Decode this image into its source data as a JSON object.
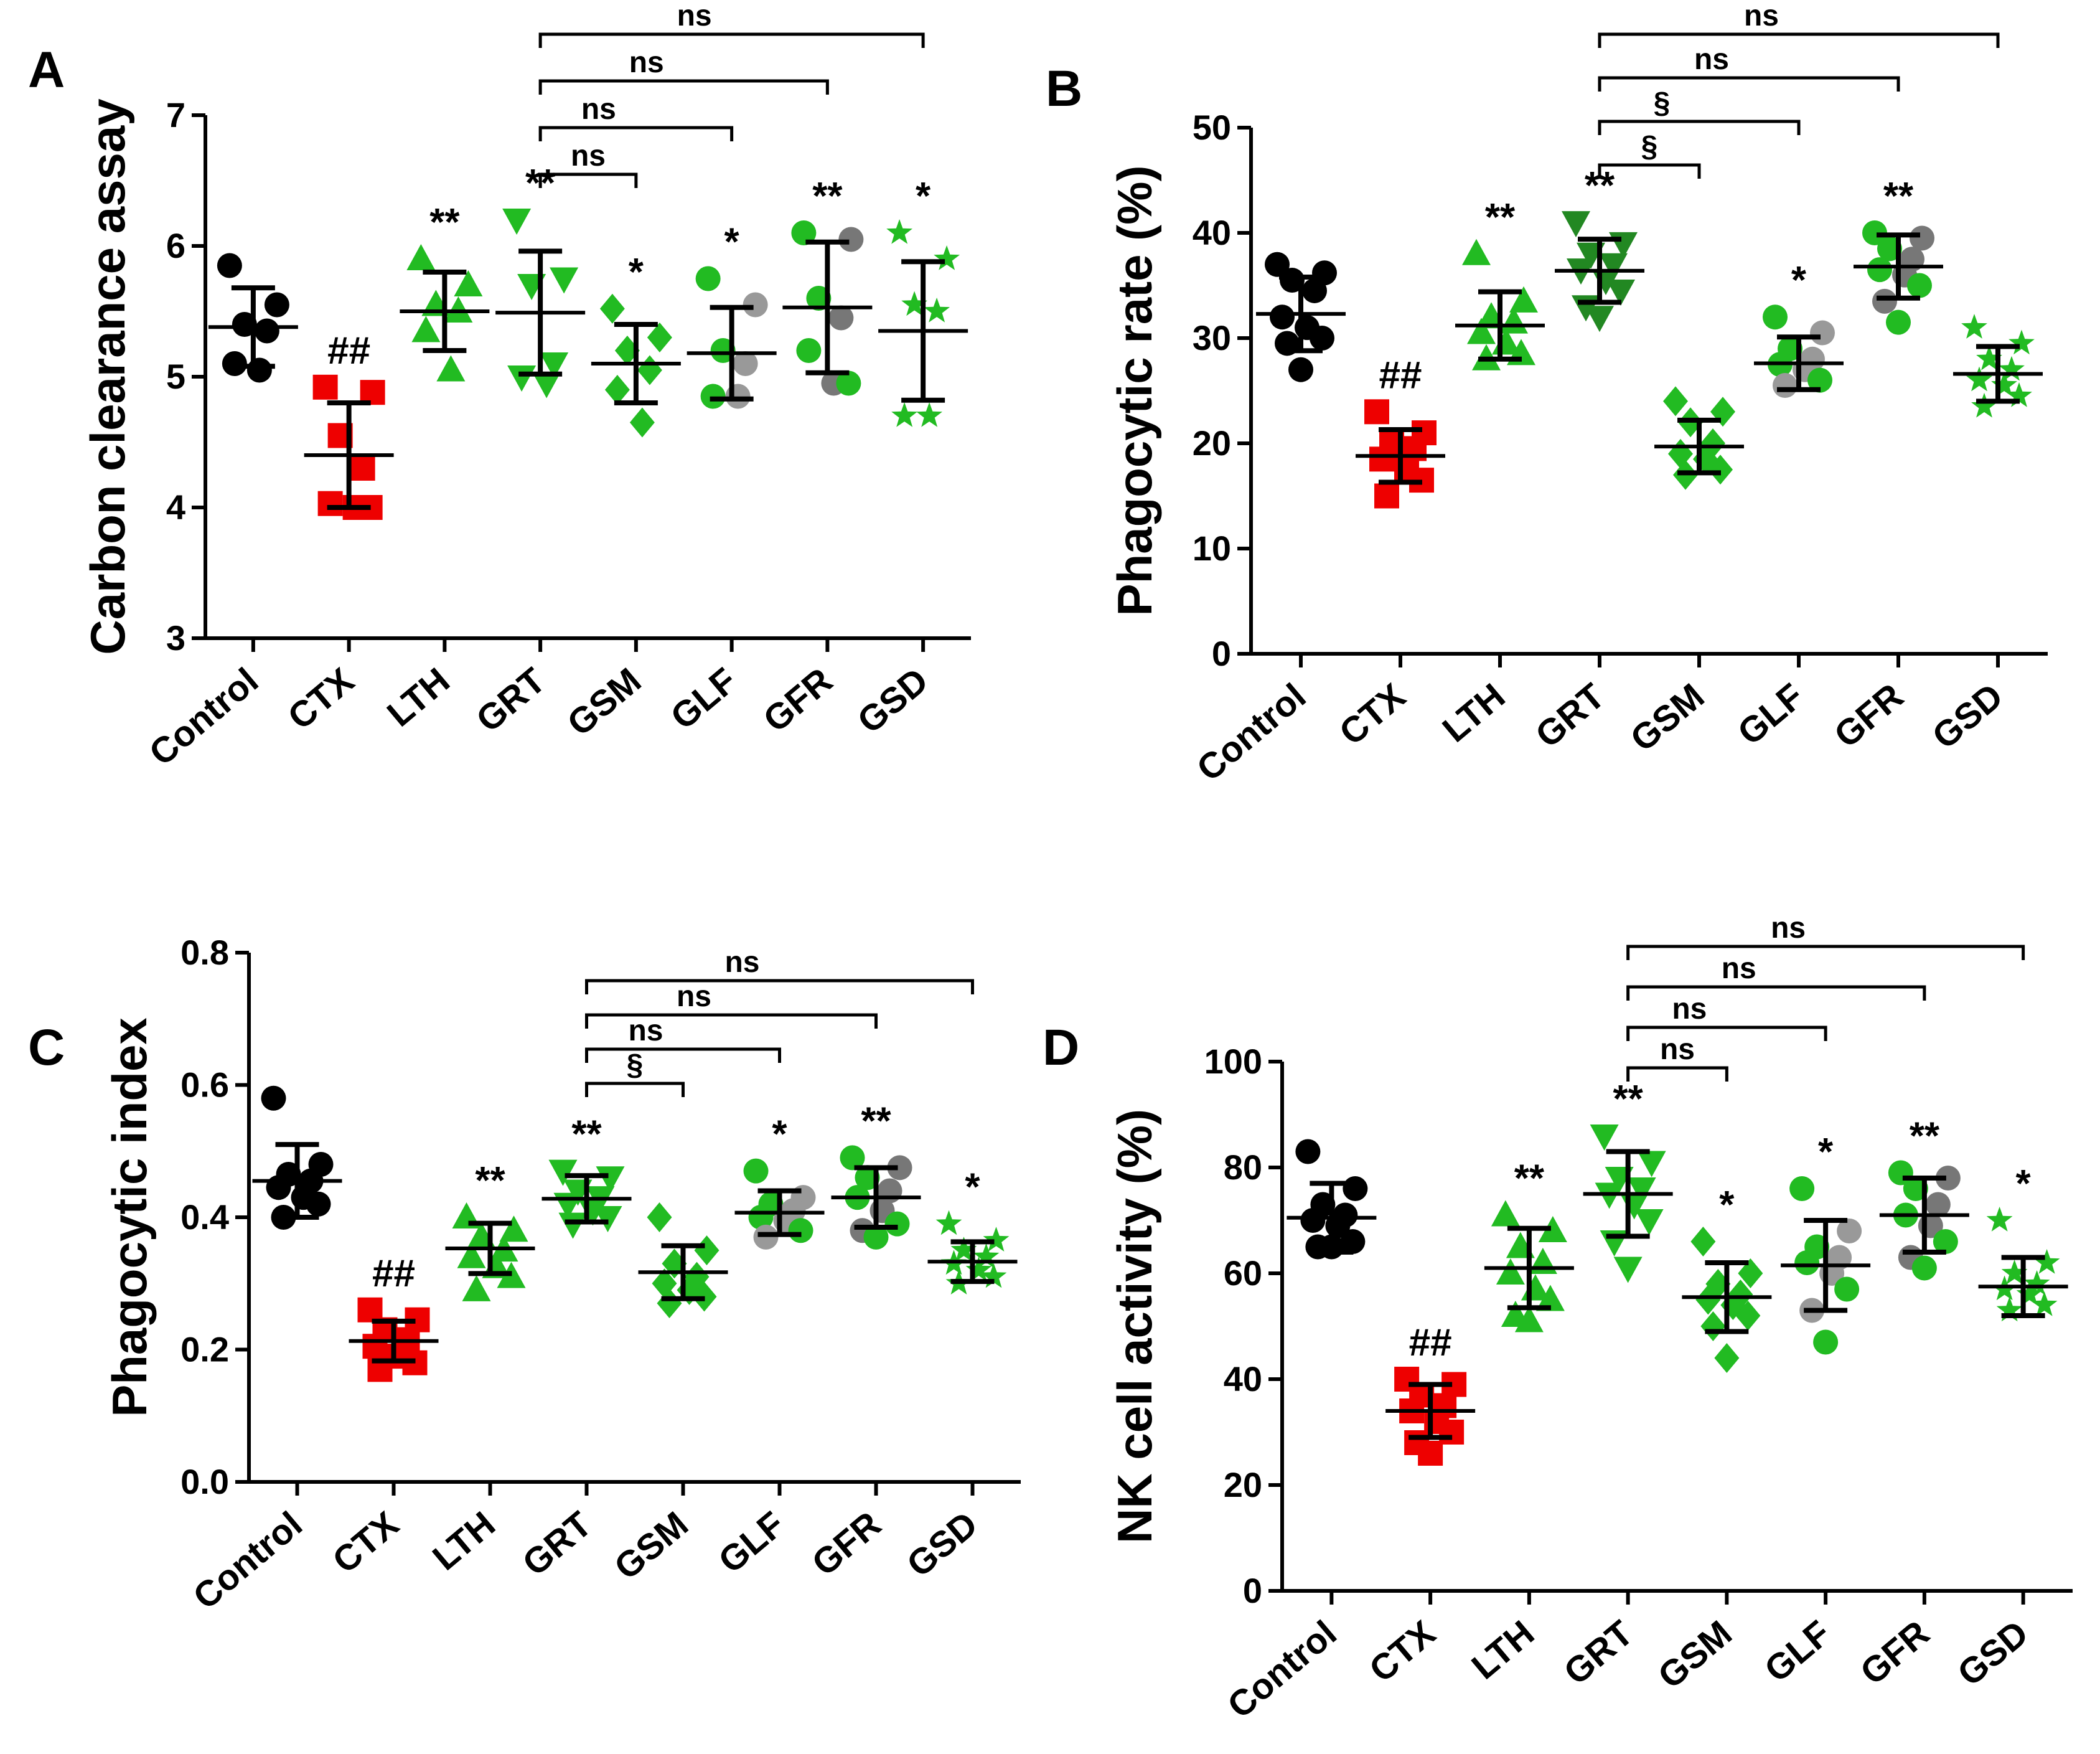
{
  "chart_data": [
    {
      "panel": "A",
      "type": "scatter",
      "ylabel": "Carbon clearance assay",
      "ylim": [
        3,
        7
      ],
      "yticks": [
        "3",
        "4",
        "5",
        "6",
        "7"
      ],
      "categories": [
        "Control",
        "CTX",
        "LTH",
        "GRT",
        "GSM",
        "GLF",
        "GFR",
        "GSD"
      ],
      "groups": [
        {
          "name": "Control",
          "mean": 5.38,
          "sd": 0.3,
          "marker": "circle",
          "colors": [
            "#000000"
          ],
          "points": [
            5.85,
            5.55,
            5.4,
            5.35,
            5.1,
            5.05
          ]
        },
        {
          "name": "CTX",
          "mean": 4.4,
          "sd": 0.4,
          "marker": "square",
          "colors": [
            "#ee0000"
          ],
          "points": [
            4.92,
            4.88,
            4.55,
            4.3,
            4.03,
            4.0,
            4.0
          ]
        },
        {
          "name": "LTH",
          "mean": 5.5,
          "sd": 0.3,
          "marker": "triangle",
          "colors": [
            "#22bb22"
          ],
          "points": [
            5.9,
            5.7,
            5.55,
            5.5,
            5.35,
            5.05
          ]
        },
        {
          "name": "GRT",
          "mean": 5.49,
          "sd": 0.47,
          "marker": "triangle-down",
          "colors": [
            "#22bb22"
          ],
          "points": [
            6.2,
            5.75,
            5.7,
            5.1,
            5.0,
            4.95
          ]
        },
        {
          "name": "GSM",
          "mean": 5.1,
          "sd": 0.3,
          "marker": "diamond",
          "colors": [
            "#22bb22"
          ],
          "points": [
            5.52,
            5.3,
            5.2,
            5.05,
            4.9,
            4.65
          ]
        },
        {
          "name": "GLF",
          "mean": 5.18,
          "sd": 0.35,
          "marker": "circle",
          "colors": [
            "#22bb22",
            "#999999"
          ],
          "points": [
            5.75,
            5.55,
            5.2,
            5.1,
            4.85,
            4.85
          ]
        },
        {
          "name": "GFR",
          "mean": 5.53,
          "sd": 0.5,
          "marker": "circle",
          "colors": [
            "#22bb22",
            "#777777"
          ],
          "points": [
            6.1,
            6.05,
            5.6,
            5.45,
            5.2,
            4.95,
            4.95
          ]
        },
        {
          "name": "GSD",
          "mean": 5.35,
          "sd": 0.53,
          "marker": "star",
          "colors": [
            "#22bb22"
          ],
          "points": [
            6.1,
            5.9,
            5.55,
            5.5,
            4.7,
            4.7
          ]
        }
      ],
      "significance": [
        "",
        "##",
        "**",
        "**",
        "*",
        "*",
        "**",
        "*"
      ],
      "brackets": [
        {
          "from": "GRT",
          "to": "GSM",
          "label": "ns"
        },
        {
          "from": "GRT",
          "to": "GLF",
          "label": "ns"
        },
        {
          "from": "GRT",
          "to": "GFR",
          "label": "ns"
        },
        {
          "from": "GRT",
          "to": "GSD",
          "label": "ns"
        }
      ]
    },
    {
      "panel": "B",
      "type": "scatter",
      "ylabel": "Phagocytic rate (%)",
      "ylim": [
        0,
        50
      ],
      "yticks": [
        "0",
        "10",
        "20",
        "30",
        "40",
        "50"
      ],
      "categories": [
        "Control",
        "CTX",
        "LTH",
        "GRT",
        "GSM",
        "GLF",
        "GFR",
        "GSD"
      ],
      "groups": [
        {
          "name": "Control",
          "mean": 32.3,
          "sd": 3.5,
          "marker": "circle",
          "colors": [
            "#000000"
          ],
          "points": [
            37,
            36.2,
            35.5,
            34.5,
            32.0,
            31.0,
            30.0,
            29.5,
            27.0
          ]
        },
        {
          "name": "CTX",
          "mean": 18.8,
          "sd": 2.5,
          "marker": "square",
          "colors": [
            "#ee0000"
          ],
          "points": [
            23.0,
            21.0,
            20.0,
            19.5,
            18.5,
            17.5,
            16.5,
            15.0
          ]
        },
        {
          "name": "LTH",
          "mean": 31.2,
          "sd": 3.2,
          "marker": "triangle",
          "colors": [
            "#22bb22"
          ],
          "points": [
            38.0,
            33.5,
            32.0,
            31.5,
            30.5,
            29.5,
            28.5,
            28.0
          ]
        },
        {
          "name": "GRT",
          "mean": 36.4,
          "sd": 3.0,
          "marker": "triangle-down",
          "colors": [
            "#228822"
          ],
          "points": [
            41.0,
            39.0,
            38.0,
            37.0,
            36.5,
            35.5,
            34.5,
            33.0,
            32.0
          ]
        },
        {
          "name": "GSM",
          "mean": 19.7,
          "sd": 2.5,
          "marker": "diamond",
          "colors": [
            "#22bb22"
          ],
          "points": [
            24.0,
            23.0,
            22.0,
            20.0,
            19.0,
            18.5,
            17.5,
            17.0
          ]
        },
        {
          "name": "GLF",
          "mean": 27.6,
          "sd": 2.5,
          "marker": "circle",
          "colors": [
            "#22bb22",
            "#999999"
          ],
          "points": [
            32.0,
            30.5,
            29.0,
            28.0,
            27.5,
            27.0,
            26.0,
            25.5
          ]
        },
        {
          "name": "GFR",
          "mean": 36.8,
          "sd": 3.0,
          "marker": "circle",
          "colors": [
            "#22bb22",
            "#777777"
          ],
          "points": [
            40.0,
            39.5,
            38.5,
            37.5,
            36.5,
            36.0,
            35.0,
            33.5,
            31.5
          ]
        },
        {
          "name": "GSD",
          "mean": 26.6,
          "sd": 2.6,
          "marker": "star",
          "colors": [
            "#22bb22"
          ],
          "points": [
            31.0,
            29.5,
            28.0,
            27.0,
            26.0,
            25.5,
            24.5,
            23.5
          ]
        }
      ],
      "significance": [
        "",
        "##",
        "**",
        "**",
        "",
        "*",
        "**",
        ""
      ],
      "brackets": [
        {
          "from": "GRT",
          "to": "GSM",
          "label": "§"
        },
        {
          "from": "GRT",
          "to": "GLF",
          "label": "§"
        },
        {
          "from": "GRT",
          "to": "GFR",
          "label": "ns"
        },
        {
          "from": "GRT",
          "to": "GSD",
          "label": "ns"
        }
      ]
    },
    {
      "panel": "C",
      "type": "scatter",
      "ylabel": "Phagocytic index",
      "ylim": [
        0.0,
        0.8
      ],
      "yticks": [
        "0.0",
        "0.2",
        "0.4",
        "0.6",
        "0.8"
      ],
      "categories": [
        "Control",
        "CTX",
        "LTH",
        "GRT",
        "GSM",
        "GLF",
        "GFR",
        "GSD"
      ],
      "groups": [
        {
          "name": "Control",
          "mean": 0.455,
          "sd": 0.055,
          "marker": "circle",
          "colors": [
            "#000000"
          ],
          "points": [
            0.58,
            0.48,
            0.465,
            0.455,
            0.445,
            0.43,
            0.42,
            0.4
          ]
        },
        {
          "name": "CTX",
          "mean": 0.213,
          "sd": 0.03,
          "marker": "square",
          "colors": [
            "#ee0000"
          ],
          "points": [
            0.26,
            0.245,
            0.23,
            0.215,
            0.205,
            0.19,
            0.18,
            0.17
          ]
        },
        {
          "name": "LTH",
          "mean": 0.353,
          "sd": 0.038,
          "marker": "triangle",
          "colors": [
            "#22bb22"
          ],
          "points": [
            0.4,
            0.38,
            0.37,
            0.35,
            0.34,
            0.325,
            0.31,
            0.29
          ]
        },
        {
          "name": "GRT",
          "mean": 0.428,
          "sd": 0.035,
          "marker": "triangle-down",
          "colors": [
            "#22bb22"
          ],
          "points": [
            0.47,
            0.46,
            0.44,
            0.43,
            0.42,
            0.41,
            0.4,
            0.39
          ]
        },
        {
          "name": "GSM",
          "mean": 0.317,
          "sd": 0.04,
          "marker": "diamond",
          "colors": [
            "#22bb22"
          ],
          "points": [
            0.4,
            0.35,
            0.33,
            0.31,
            0.3,
            0.29,
            0.28,
            0.27
          ]
        },
        {
          "name": "GLF",
          "mean": 0.407,
          "sd": 0.033,
          "marker": "circle",
          "colors": [
            "#22bb22",
            "#999999"
          ],
          "points": [
            0.47,
            0.43,
            0.42,
            0.41,
            0.4,
            0.395,
            0.38,
            0.37
          ]
        },
        {
          "name": "GFR",
          "mean": 0.43,
          "sd": 0.045,
          "marker": "circle",
          "colors": [
            "#22bb22",
            "#777777"
          ],
          "points": [
            0.49,
            0.475,
            0.46,
            0.44,
            0.43,
            0.41,
            0.39,
            0.38,
            0.37
          ]
        },
        {
          "name": "GSD",
          "mean": 0.333,
          "sd": 0.03,
          "marker": "star",
          "colors": [
            "#22bb22"
          ],
          "points": [
            0.39,
            0.365,
            0.35,
            0.34,
            0.33,
            0.32,
            0.31,
            0.3
          ]
        }
      ],
      "significance": [
        "",
        "##",
        "**",
        "**",
        "",
        "*",
        "**",
        "*"
      ],
      "brackets": [
        {
          "from": "GRT",
          "to": "GSM",
          "label": "§"
        },
        {
          "from": "GRT",
          "to": "GLF",
          "label": "ns"
        },
        {
          "from": "GRT",
          "to": "GFR",
          "label": "ns"
        },
        {
          "from": "GRT",
          "to": "GSD",
          "label": "ns"
        }
      ]
    },
    {
      "panel": "D",
      "type": "scatter",
      "ylabel": "NK cell activity (%)",
      "ylim": [
        0,
        100
      ],
      "yticks": [
        "0",
        "20",
        "40",
        "60",
        "80",
        "100"
      ],
      "categories": [
        "Control",
        "CTX",
        "LTH",
        "GRT",
        "GSM",
        "GLF",
        "GFR",
        "GSD"
      ],
      "groups": [
        {
          "name": "Control",
          "mean": 70.5,
          "sd": 6.5,
          "marker": "circle",
          "colors": [
            "#000000"
          ],
          "points": [
            83,
            76,
            73,
            71,
            70,
            69,
            66,
            65,
            65
          ]
        },
        {
          "name": "CTX",
          "mean": 34,
          "sd": 5,
          "marker": "square",
          "colors": [
            "#ee0000"
          ],
          "points": [
            40,
            39,
            37,
            35,
            34,
            32,
            30,
            28,
            26
          ]
        },
        {
          "name": "LTH",
          "mean": 61,
          "sd": 7.5,
          "marker": "triangle",
          "colors": [
            "#22bb22"
          ],
          "points": [
            71,
            68,
            65,
            62,
            60,
            57,
            55,
            52,
            51
          ]
        },
        {
          "name": "GRT",
          "mean": 75,
          "sd": 8,
          "marker": "triangle-down",
          "colors": [
            "#22bb22"
          ],
          "points": [
            86,
            81,
            78,
            76,
            75,
            73,
            70,
            66,
            61
          ]
        },
        {
          "name": "GSM",
          "mean": 55.5,
          "sd": 6.5,
          "marker": "diamond",
          "colors": [
            "#22bb22"
          ],
          "points": [
            66,
            60,
            58,
            56,
            55,
            54,
            52,
            50,
            44
          ]
        },
        {
          "name": "GLF",
          "mean": 61.5,
          "sd": 8.5,
          "marker": "circle",
          "colors": [
            "#22bb22",
            "#999999"
          ],
          "points": [
            76,
            68,
            65,
            63,
            62,
            60,
            57,
            53,
            47
          ]
        },
        {
          "name": "GFR",
          "mean": 71,
          "sd": 7,
          "marker": "circle",
          "colors": [
            "#22bb22",
            "#777777"
          ],
          "points": [
            79,
            78,
            76,
            73,
            71,
            69,
            66,
            63,
            61
          ]
        },
        {
          "name": "GSD",
          "mean": 57.5,
          "sd": 5.5,
          "marker": "star",
          "colors": [
            "#22bb22"
          ],
          "points": [
            70,
            62,
            60,
            58,
            57,
            56,
            54,
            53
          ]
        }
      ],
      "significance": [
        "",
        "##",
        "**",
        "**",
        "*",
        "*",
        "**",
        "*"
      ],
      "brackets": [
        {
          "from": "GRT",
          "to": "GSM",
          "label": "ns"
        },
        {
          "from": "GRT",
          "to": "GLF",
          "label": "ns"
        },
        {
          "from": "GRT",
          "to": "GFR",
          "label": "ns"
        },
        {
          "from": "GRT",
          "to": "GSD",
          "label": "ns"
        }
      ]
    }
  ]
}
